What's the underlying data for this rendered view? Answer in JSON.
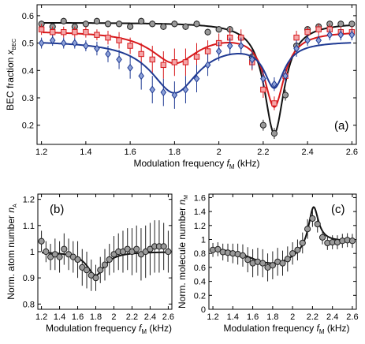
{
  "chart_data": [
    {
      "type": "scatter",
      "panel_label": "(a)",
      "xlabel": "Modulation frequency",
      "xsymbol": "f",
      "xsub": "M",
      "xunit": "(kHz)",
      "ylabel": "BEC fraction",
      "ysymbol": "x",
      "ysub": "BEC",
      "xlim": [
        1.18,
        2.62
      ],
      "ylim": [
        0.13,
        0.64
      ],
      "xticks": [
        "1.2",
        "1.4",
        "1.6",
        "1.8",
        "2",
        "2.2",
        "2.4",
        "2.6"
      ],
      "yticks": [
        "0.2",
        "0.3",
        "0.4",
        "0.5",
        "0.6"
      ],
      "series": [
        {
          "marker": "circle",
          "color": "#222222",
          "fill": "#9a9a9a",
          "x": [
            1.2,
            1.25,
            1.3,
            1.35,
            1.4,
            1.45,
            1.5,
            1.55,
            1.6,
            1.65,
            1.7,
            1.75,
            1.8,
            1.85,
            1.9,
            1.95,
            2.0,
            2.05,
            2.1,
            2.15,
            2.2,
            2.25,
            2.3,
            2.35,
            2.4,
            2.45,
            2.5,
            2.55,
            2.6
          ],
          "y": [
            0.57,
            0.56,
            0.58,
            0.56,
            0.57,
            0.58,
            0.57,
            0.57,
            0.56,
            0.58,
            0.57,
            0.56,
            0.57,
            0.56,
            0.57,
            0.54,
            0.55,
            0.55,
            0.52,
            0.45,
            0.2,
            0.17,
            0.31,
            0.49,
            0.55,
            0.56,
            0.57,
            0.57,
            0.57
          ],
          "err": [
            0.012,
            0.012,
            0.012,
            0.012,
            0.012,
            0.012,
            0.012,
            0.012,
            0.012,
            0.012,
            0.012,
            0.012,
            0.012,
            0.012,
            0.012,
            0.012,
            0.012,
            0.012,
            0.015,
            0.02,
            0.02,
            0.02,
            0.02,
            0.015,
            0.012,
            0.012,
            0.012,
            0.012,
            0.012
          ],
          "fit": {
            "baseline": 0.575,
            "dip1": 0.0,
            "dip2": 0.405
          }
        },
        {
          "marker": "square",
          "color": "#d7191c",
          "fill": "#f4a6a8",
          "x": [
            1.2,
            1.25,
            1.3,
            1.35,
            1.4,
            1.45,
            1.5,
            1.55,
            1.6,
            1.65,
            1.7,
            1.75,
            1.8,
            1.85,
            1.9,
            1.95,
            2.0,
            2.05,
            2.1,
            2.15,
            2.2,
            2.25,
            2.3,
            2.35,
            2.4,
            2.45,
            2.5,
            2.55,
            2.6
          ],
          "y": [
            0.55,
            0.54,
            0.54,
            0.54,
            0.54,
            0.53,
            0.52,
            0.51,
            0.49,
            0.46,
            0.44,
            0.42,
            0.43,
            0.43,
            0.45,
            0.47,
            0.5,
            0.52,
            0.52,
            0.43,
            0.33,
            0.28,
            0.38,
            0.52,
            0.54,
            0.55,
            0.55,
            0.54,
            0.54
          ],
          "err": [
            0.02,
            0.02,
            0.02,
            0.02,
            0.02,
            0.02,
            0.025,
            0.03,
            0.03,
            0.04,
            0.05,
            0.05,
            0.05,
            0.05,
            0.05,
            0.04,
            0.035,
            0.035,
            0.03,
            0.03,
            0.03,
            0.025,
            0.03,
            0.025,
            0.02,
            0.02,
            0.02,
            0.02,
            0.02
          ],
          "fit": {
            "baseline": 0.545,
            "dip1": 0.115,
            "dip2": 0.27
          }
        },
        {
          "marker": "diamond",
          "color": "#1f3a93",
          "fill": "#8ea2d8",
          "x": [
            1.2,
            1.25,
            1.3,
            1.35,
            1.4,
            1.45,
            1.5,
            1.55,
            1.6,
            1.65,
            1.7,
            1.75,
            1.8,
            1.85,
            1.9,
            1.95,
            2.0,
            2.05,
            2.1,
            2.15,
            2.2,
            2.25,
            2.3,
            2.35,
            2.4,
            2.45,
            2.5,
            2.55,
            2.6
          ],
          "y": [
            0.5,
            0.51,
            0.5,
            0.5,
            0.49,
            0.48,
            0.46,
            0.44,
            0.41,
            0.38,
            0.33,
            0.32,
            0.31,
            0.33,
            0.37,
            0.42,
            0.47,
            0.49,
            0.49,
            0.44,
            0.37,
            0.35,
            0.38,
            0.48,
            0.51,
            0.51,
            0.53,
            0.53,
            0.53
          ],
          "err": [
            0.02,
            0.02,
            0.02,
            0.02,
            0.02,
            0.025,
            0.03,
            0.035,
            0.04,
            0.05,
            0.05,
            0.05,
            0.05,
            0.05,
            0.05,
            0.04,
            0.035,
            0.03,
            0.03,
            0.035,
            0.03,
            0.025,
            0.03,
            0.03,
            0.02,
            0.02,
            0.02,
            0.02,
            0.02
          ],
          "fit": {
            "baseline": 0.51,
            "dip1": 0.19,
            "dip2": 0.16
          }
        }
      ]
    },
    {
      "type": "scatter",
      "panel_label": "(b)",
      "xlabel": "Modulation frequency",
      "xsymbol": "f",
      "xsub": "M",
      "xunit": "(kHz)",
      "ylabel": "Norm. atom number",
      "ysymbol": "n",
      "ysub": "A",
      "xlim": [
        1.16,
        2.64
      ],
      "ylim": [
        0.78,
        1.22
      ],
      "xticks": [
        "1.2",
        "1.4",
        "1.6",
        "1.8",
        "2",
        "2.2",
        "2.4",
        "2.6"
      ],
      "yticks": [
        "0.8",
        "0.9",
        "1",
        "1.1",
        "1.2"
      ],
      "series": [
        {
          "marker": "circle",
          "color": "#222222",
          "fill": "#9a9a9a",
          "x": [
            1.2,
            1.25,
            1.3,
            1.35,
            1.4,
            1.45,
            1.5,
            1.55,
            1.6,
            1.65,
            1.7,
            1.75,
            1.8,
            1.85,
            1.9,
            1.95,
            2.0,
            2.05,
            2.1,
            2.15,
            2.2,
            2.25,
            2.3,
            2.35,
            2.4,
            2.45,
            2.5,
            2.55,
            2.6
          ],
          "y": [
            1.04,
            1.0,
            0.98,
            0.99,
            0.98,
            1.01,
            0.99,
            0.98,
            0.97,
            0.94,
            0.93,
            0.91,
            0.9,
            0.93,
            0.95,
            0.97,
            0.99,
            1.0,
            1.0,
            1.01,
            1.0,
            1.01,
            0.99,
            1.0,
            1.01,
            1.02,
            1.02,
            1.02,
            1.0
          ],
          "err": [
            0.04,
            0.04,
            0.05,
            0.06,
            0.06,
            0.06,
            0.06,
            0.06,
            0.07,
            0.07,
            0.07,
            0.06,
            0.05,
            0.05,
            0.06,
            0.06,
            0.07,
            0.07,
            0.08,
            0.08,
            0.09,
            0.09,
            0.1,
            0.1,
            0.1,
            0.1,
            0.1,
            0.09,
            0.08
          ],
          "fit": {
            "type": "single",
            "baseline": 1.0,
            "center": 1.8,
            "width": 0.12,
            "amp": 0.09
          }
        }
      ]
    },
    {
      "type": "scatter",
      "panel_label": "(c)",
      "xlabel": "Modulation frequency",
      "xsymbol": "f",
      "xsub": "M",
      "xunit": "(kHz)",
      "ylabel": "Norm. molecule number",
      "ysymbol": "n",
      "ysub": "M",
      "xlim": [
        1.16,
        2.64
      ],
      "ylim": [
        0.0,
        1.65
      ],
      "xticks": [
        "1.2",
        "1.4",
        "1.6",
        "1.8",
        "2",
        "2.2",
        "2.4",
        "2.6"
      ],
      "yticks": [
        "0",
        "0.2",
        "0.4",
        "0.6",
        "0.8",
        "1",
        "1.2",
        "1.4",
        "1.6"
      ],
      "series": [
        {
          "marker": "circle",
          "color": "#222222",
          "fill": "#9a9a9a",
          "x": [
            1.2,
            1.25,
            1.3,
            1.35,
            1.4,
            1.45,
            1.5,
            1.55,
            1.6,
            1.65,
            1.7,
            1.75,
            1.8,
            1.85,
            1.9,
            1.95,
            2.0,
            2.05,
            2.1,
            2.15,
            2.2,
            2.25,
            2.3,
            2.35,
            2.4,
            2.45,
            2.5,
            2.55,
            2.6
          ],
          "y": [
            0.85,
            0.86,
            0.82,
            0.81,
            0.8,
            0.79,
            0.77,
            0.71,
            0.66,
            0.68,
            0.66,
            0.6,
            0.63,
            0.68,
            0.66,
            0.72,
            0.8,
            0.85,
            0.95,
            1.15,
            1.3,
            1.22,
            1.03,
            0.95,
            0.96,
            0.96,
            0.98,
            0.99,
            0.98
          ],
          "err": [
            0.1,
            0.1,
            0.12,
            0.13,
            0.14,
            0.15,
            0.16,
            0.18,
            0.2,
            0.2,
            0.2,
            0.2,
            0.2,
            0.2,
            0.18,
            0.18,
            0.16,
            0.15,
            0.15,
            0.14,
            0.12,
            0.12,
            0.1,
            0.1,
            0.1,
            0.1,
            0.1,
            0.1,
            0.1
          ],
          "fit": {
            "type": "double",
            "baseline": 0.86,
            "dip_center": 1.8,
            "dip_width": 0.22,
            "dip_amp": 0.21,
            "peak_center": 2.21,
            "peak_width": 0.06,
            "peak_amp": 0.55,
            "tail": 0.97
          }
        }
      ]
    }
  ]
}
